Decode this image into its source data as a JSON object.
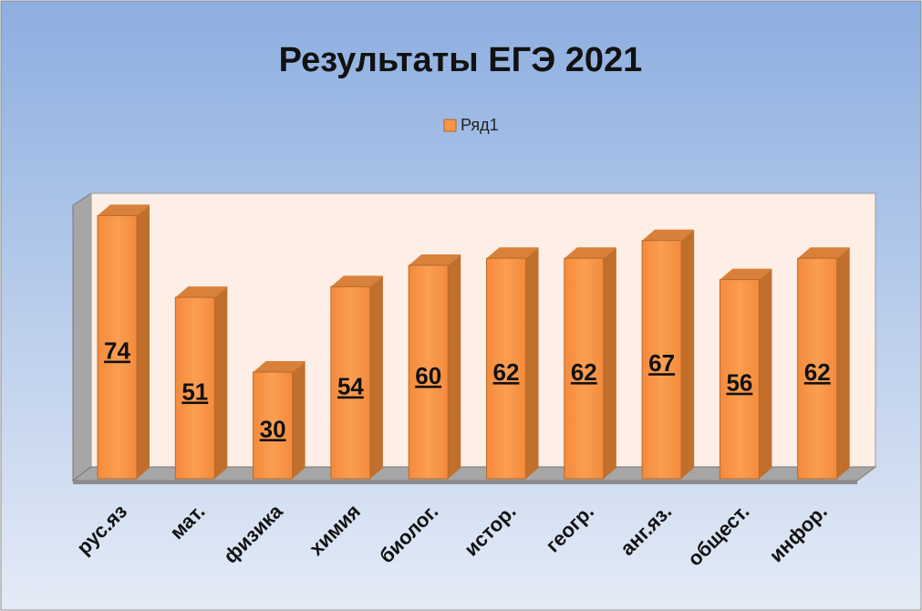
{
  "chart_data": {
    "type": "bar",
    "title": "Результаты ЕГЭ 2021",
    "categories": [
      "рус.яз",
      "мат.",
      "физика",
      "химия",
      "биолог.",
      "истор.",
      "геогр.",
      "анг.яз.",
      "общест.",
      "инфор."
    ],
    "series": [
      {
        "name": "Ряд1",
        "color": "#f79646",
        "values": [
          74,
          51,
          30,
          54,
          60,
          62,
          62,
          67,
          56,
          62
        ]
      }
    ],
    "legend": "top"
  }
}
